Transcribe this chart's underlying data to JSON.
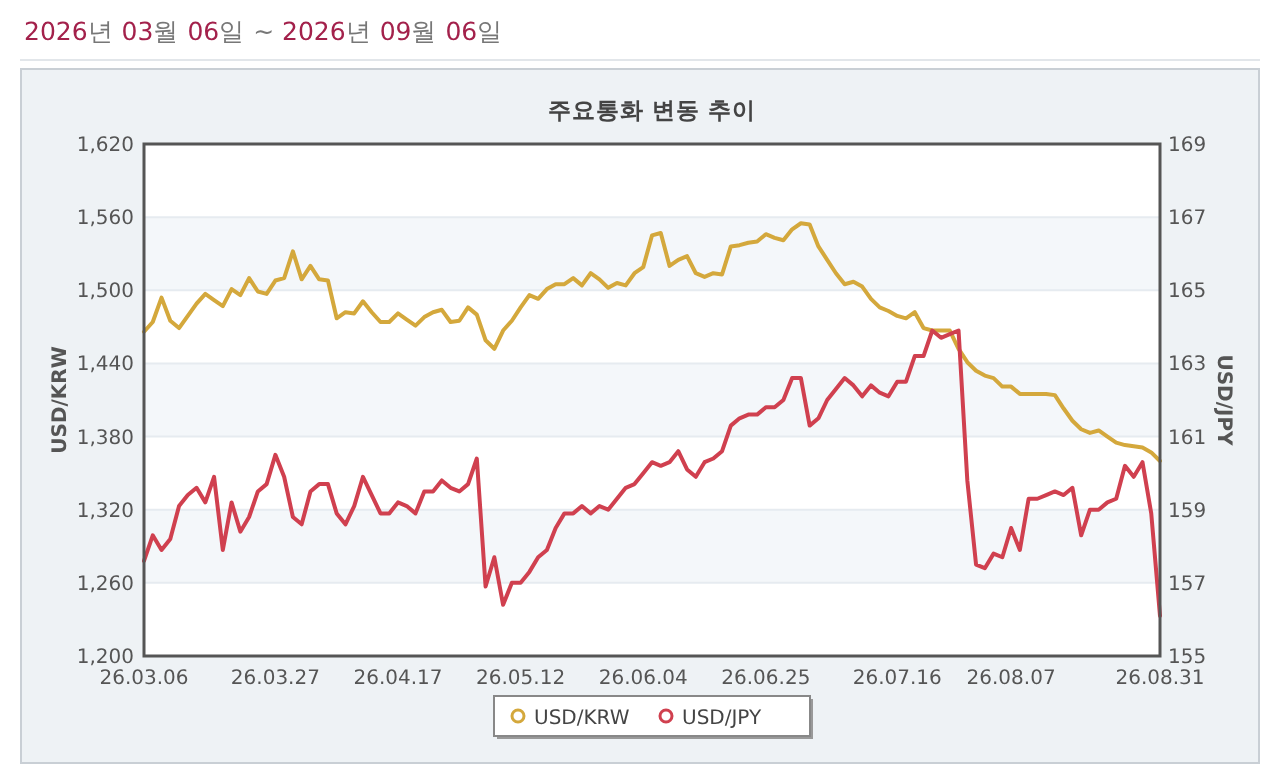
{
  "chart_data": {
    "type": "line",
    "title": "주요통화 변동 추이",
    "annotations": [
      "2026년 03월 06일 ~ 2026년 09월 06일"
    ],
    "ylabel": "USD/KRW",
    "y2label": "USD/JPY",
    "categories": [
      "26.03.06",
      null,
      null,
      null,
      null,
      null,
      null,
      null,
      null,
      null,
      null,
      null,
      null,
      null,
      null,
      "26.03.27",
      null,
      null,
      null,
      null,
      null,
      null,
      null,
      null,
      null,
      null,
      null,
      null,
      null,
      "26.04.17",
      null,
      null,
      null,
      null,
      null,
      null,
      null,
      null,
      null,
      null,
      null,
      null,
      null,
      "26.05.12",
      null,
      null,
      null,
      null,
      null,
      null,
      null,
      null,
      null,
      null,
      null,
      null,
      null,
      "26.06.04",
      null,
      null,
      null,
      null,
      null,
      null,
      null,
      null,
      null,
      null,
      null,
      null,
      null,
      "26.06.25",
      null,
      null,
      null,
      null,
      null,
      null,
      null,
      null,
      null,
      null,
      null,
      null,
      null,
      null,
      "26.07.16",
      null,
      null,
      null,
      null,
      null,
      null,
      null,
      null,
      null,
      null,
      null,
      null,
      "26.08.07",
      null,
      null,
      null,
      null,
      null,
      null,
      null,
      null,
      null,
      null,
      null,
      null,
      null,
      null,
      null,
      null,
      "26.08.31"
    ],
    "series": [
      {
        "name": "USD/KRW",
        "color": "#d4a83c",
        "values": [
          1466,
          1474,
          1494,
          1475,
          1469,
          1479,
          1489,
          1497,
          1492,
          1487,
          1501,
          1496,
          1510,
          1499,
          1497,
          1508,
          1510,
          1532,
          1509,
          1520,
          1509,
          1508,
          1477,
          1482,
          1481,
          1491,
          1482,
          1474,
          1474,
          1481,
          1476,
          1471,
          1478,
          1482,
          1484,
          1474,
          1475,
          1486,
          1480,
          1459,
          1452,
          1467,
          1475,
          1486,
          1496,
          1493,
          1501,
          1505,
          1505,
          1510,
          1504,
          1514,
          1509,
          1502,
          1506,
          1504,
          1514,
          1519,
          1545,
          1547,
          1520,
          1525,
          1528,
          1514,
          1511,
          1514,
          1513,
          1536,
          1537,
          1539,
          1540,
          1546,
          1543,
          1541,
          1550,
          1555,
          1554,
          1536,
          1525,
          1514,
          1505,
          1507,
          1503,
          1493,
          1486,
          1483,
          1479,
          1477,
          1482,
          1469,
          1467,
          1467,
          1467,
          1452,
          1441,
          1434,
          1430,
          1428,
          1421,
          1421,
          1415,
          1415,
          1415,
          1415,
          1414,
          1403,
          1393,
          1386,
          1383,
          1385,
          1380,
          1375,
          1373,
          1372,
          1371,
          1367,
          1360
        ]
      },
      {
        "name": "USD/JPY",
        "color": "#d0404f",
        "axis": "y2",
        "values": [
          157.6,
          158.3,
          157.9,
          158.2,
          159.1,
          159.4,
          159.6,
          159.2,
          159.9,
          157.9,
          159.2,
          158.4,
          158.8,
          159.5,
          159.7,
          160.5,
          159.9,
          158.8,
          158.6,
          159.5,
          159.7,
          159.7,
          158.9,
          158.6,
          159.1,
          159.9,
          159.4,
          158.9,
          158.9,
          159.2,
          159.1,
          158.9,
          159.5,
          159.5,
          159.8,
          159.6,
          159.5,
          159.7,
          160.4,
          156.9,
          157.7,
          156.4,
          157.0,
          157.0,
          157.3,
          157.7,
          157.9,
          158.5,
          158.9,
          158.9,
          159.1,
          158.9,
          159.1,
          159.0,
          159.3,
          159.6,
          159.7,
          160.0,
          160.3,
          160.2,
          160.3,
          160.6,
          160.1,
          159.9,
          160.3,
          160.4,
          160.6,
          161.3,
          161.5,
          161.6,
          161.6,
          161.8,
          161.8,
          162.0,
          162.6,
          162.6,
          161.3,
          161.5,
          162.0,
          162.3,
          162.6,
          162.4,
          162.1,
          162.4,
          162.2,
          162.1,
          162.5,
          162.5,
          163.2,
          163.2,
          163.9,
          163.7,
          163.8,
          163.9,
          159.8,
          157.5,
          157.4,
          157.8,
          157.7,
          158.5,
          157.9,
          159.3,
          159.3,
          159.4,
          159.5,
          159.4,
          159.6,
          158.3,
          159.0,
          159.0,
          159.2,
          159.3,
          160.2,
          159.9,
          160.3,
          158.9,
          156.1
        ]
      }
    ],
    "ylim": [
      1200,
      1620
    ],
    "yticks": [
      {
        "value": 1200,
        "label": "1,200"
      },
      {
        "value": 1260,
        "label": "1,260"
      },
      {
        "value": 1320,
        "label": "1,320"
      },
      {
        "value": 1380,
        "label": "1,380"
      },
      {
        "value": 1440,
        "label": "1,440"
      },
      {
        "value": 1500,
        "label": "1,500"
      },
      {
        "value": 1560,
        "label": "1,560"
      },
      {
        "value": 1620,
        "label": "1,620"
      }
    ],
    "y2lim": [
      155,
      169
    ],
    "y2ticks": [
      155,
      157,
      159,
      161,
      163,
      165,
      167,
      169
    ],
    "grid": "y",
    "legend": "bottom"
  }
}
